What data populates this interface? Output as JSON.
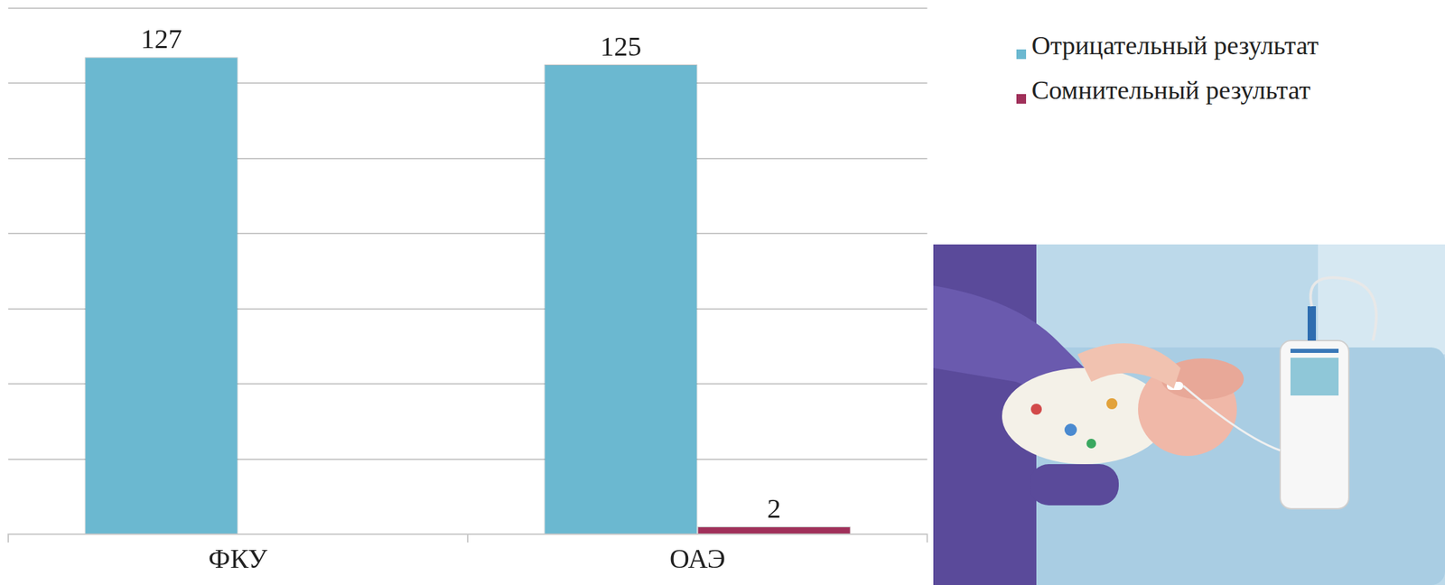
{
  "chart_data": {
    "type": "bar",
    "categories": [
      "ФКУ",
      "ОАЭ"
    ],
    "series": [
      {
        "name": "Отрицательный результат",
        "color": "#6bb8d0",
        "values": [
          127,
          125
        ]
      },
      {
        "name": "Сомнительный результат",
        "color": "#a0305a",
        "values": [
          null,
          2
        ]
      }
    ],
    "ylim": [
      0,
      140
    ],
    "yticks": [
      0,
      20,
      40,
      60,
      80,
      100,
      120,
      140
    ],
    "grid": true,
    "legend": "right",
    "data_labels": true,
    "tick_labels": "x"
  }
}
